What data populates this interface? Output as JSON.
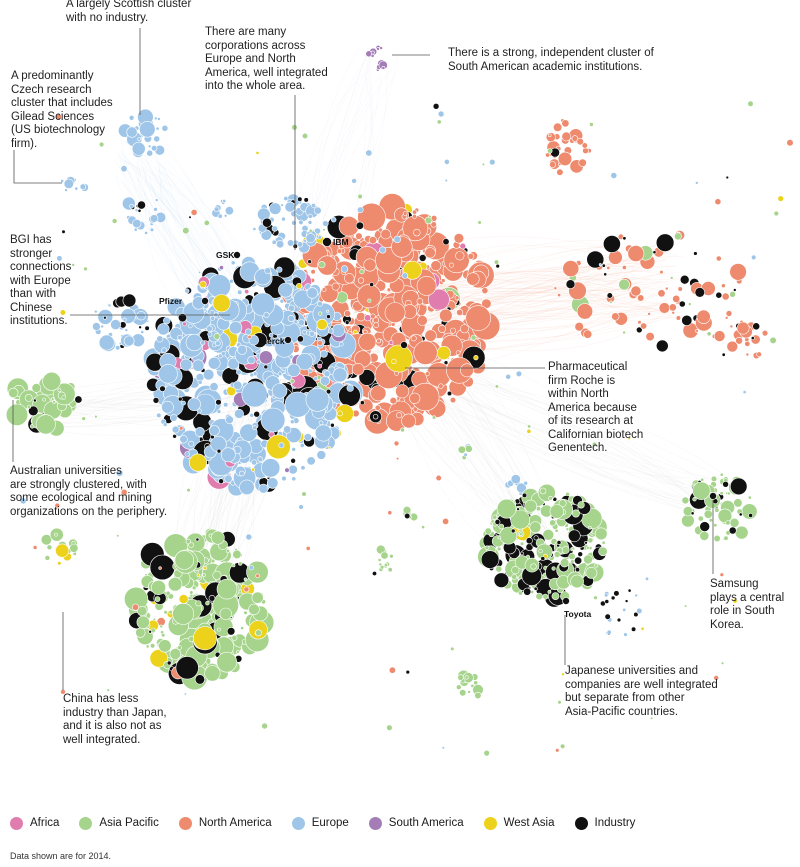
{
  "colors": {
    "africa": "#e07cae",
    "asia_pacific": "#a6d48c",
    "north_america": "#ee8a6e",
    "europe": "#9fc6e8",
    "south_america": "#a57db6",
    "west_asia": "#ecd21a",
    "industry": "#111111"
  },
  "annotations": {
    "scottish": "A largely Scottish cluster\nwith no industry.",
    "corporations": "There are many\ncorporations across\nEurope and North\nAmerica, well integrated\ninto the whole area.",
    "south_american": "There is a strong, independent cluster of\nSouth American academic institutions.",
    "czech": "A predominantly\nCzech research\ncluster that includes\nGilead Sciences\n(US biotechnology\nfirm).",
    "bgi": "BGI has\nstronger\nconnections\nwith Europe\nthan with\nChinese\ninstitutions.",
    "roche": "Pharmaceutical\nfirm Roche is\nwithin North\nAmerica because\nof its research at\nCalifornian biotech\nGenentech.",
    "australian": "Australian universities\nare strongly clustered, with\nsome ecological and mining\norganizations on the periphery.",
    "samsung": "Samsung\nplays a central\nrole in South\nKorea.",
    "china": "China has less\nindustry than Japan,\nand it is also not as\nwell integrated.",
    "japanese": "Japanese universities and\ncompanies are well integrated\nbut separate from other\nAsia-Pacific countries."
  },
  "node_labels": {
    "ibm": "IBM",
    "gsk": "GSK",
    "pfizer": "Pfizer",
    "merck": "Merck",
    "toyota": "Toyota"
  },
  "legend": [
    {
      "label": "Africa",
      "color": "#e07cae"
    },
    {
      "label": "Asia Pacific",
      "color": "#a6d48c"
    },
    {
      "label": "North America",
      "color": "#ee8a6e"
    },
    {
      "label": "Europe",
      "color": "#9fc6e8"
    },
    {
      "label": "South America",
      "color": "#a57db6"
    },
    {
      "label": "West Asia",
      "color": "#ecd21a"
    },
    {
      "label": "Industry",
      "color": "#111111"
    }
  ],
  "footnote": "Data shown are for 2014."
}
